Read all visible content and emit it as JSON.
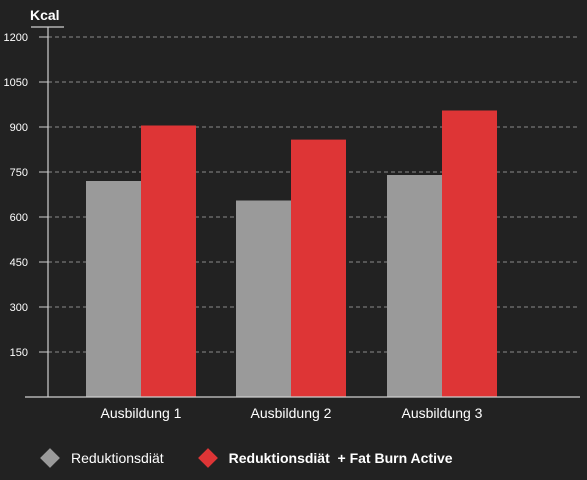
{
  "chart_data": {
    "type": "bar",
    "ylabel": "Kcal",
    "ylim": [
      0,
      1200
    ],
    "yticks": [
      "150",
      "300",
      "450",
      "600",
      "750",
      "900",
      "1050",
      "1200"
    ],
    "ytick_values": [
      150,
      300,
      450,
      600,
      750,
      900,
      1050,
      1200
    ],
    "categories": [
      "Ausbildung 1",
      "Ausbildung 2",
      "Ausbildung 3"
    ],
    "series": [
      {
        "name": "Reduktionsdiät",
        "color": "#9a9a9a",
        "values": [
          720,
          655,
          740
        ]
      },
      {
        "name": "Reduktionsdiät  + Fat Burn Active",
        "color": "#de3536",
        "values": [
          905,
          858,
          955
        ]
      }
    ],
    "grid": true,
    "legend_position": "bottom"
  }
}
